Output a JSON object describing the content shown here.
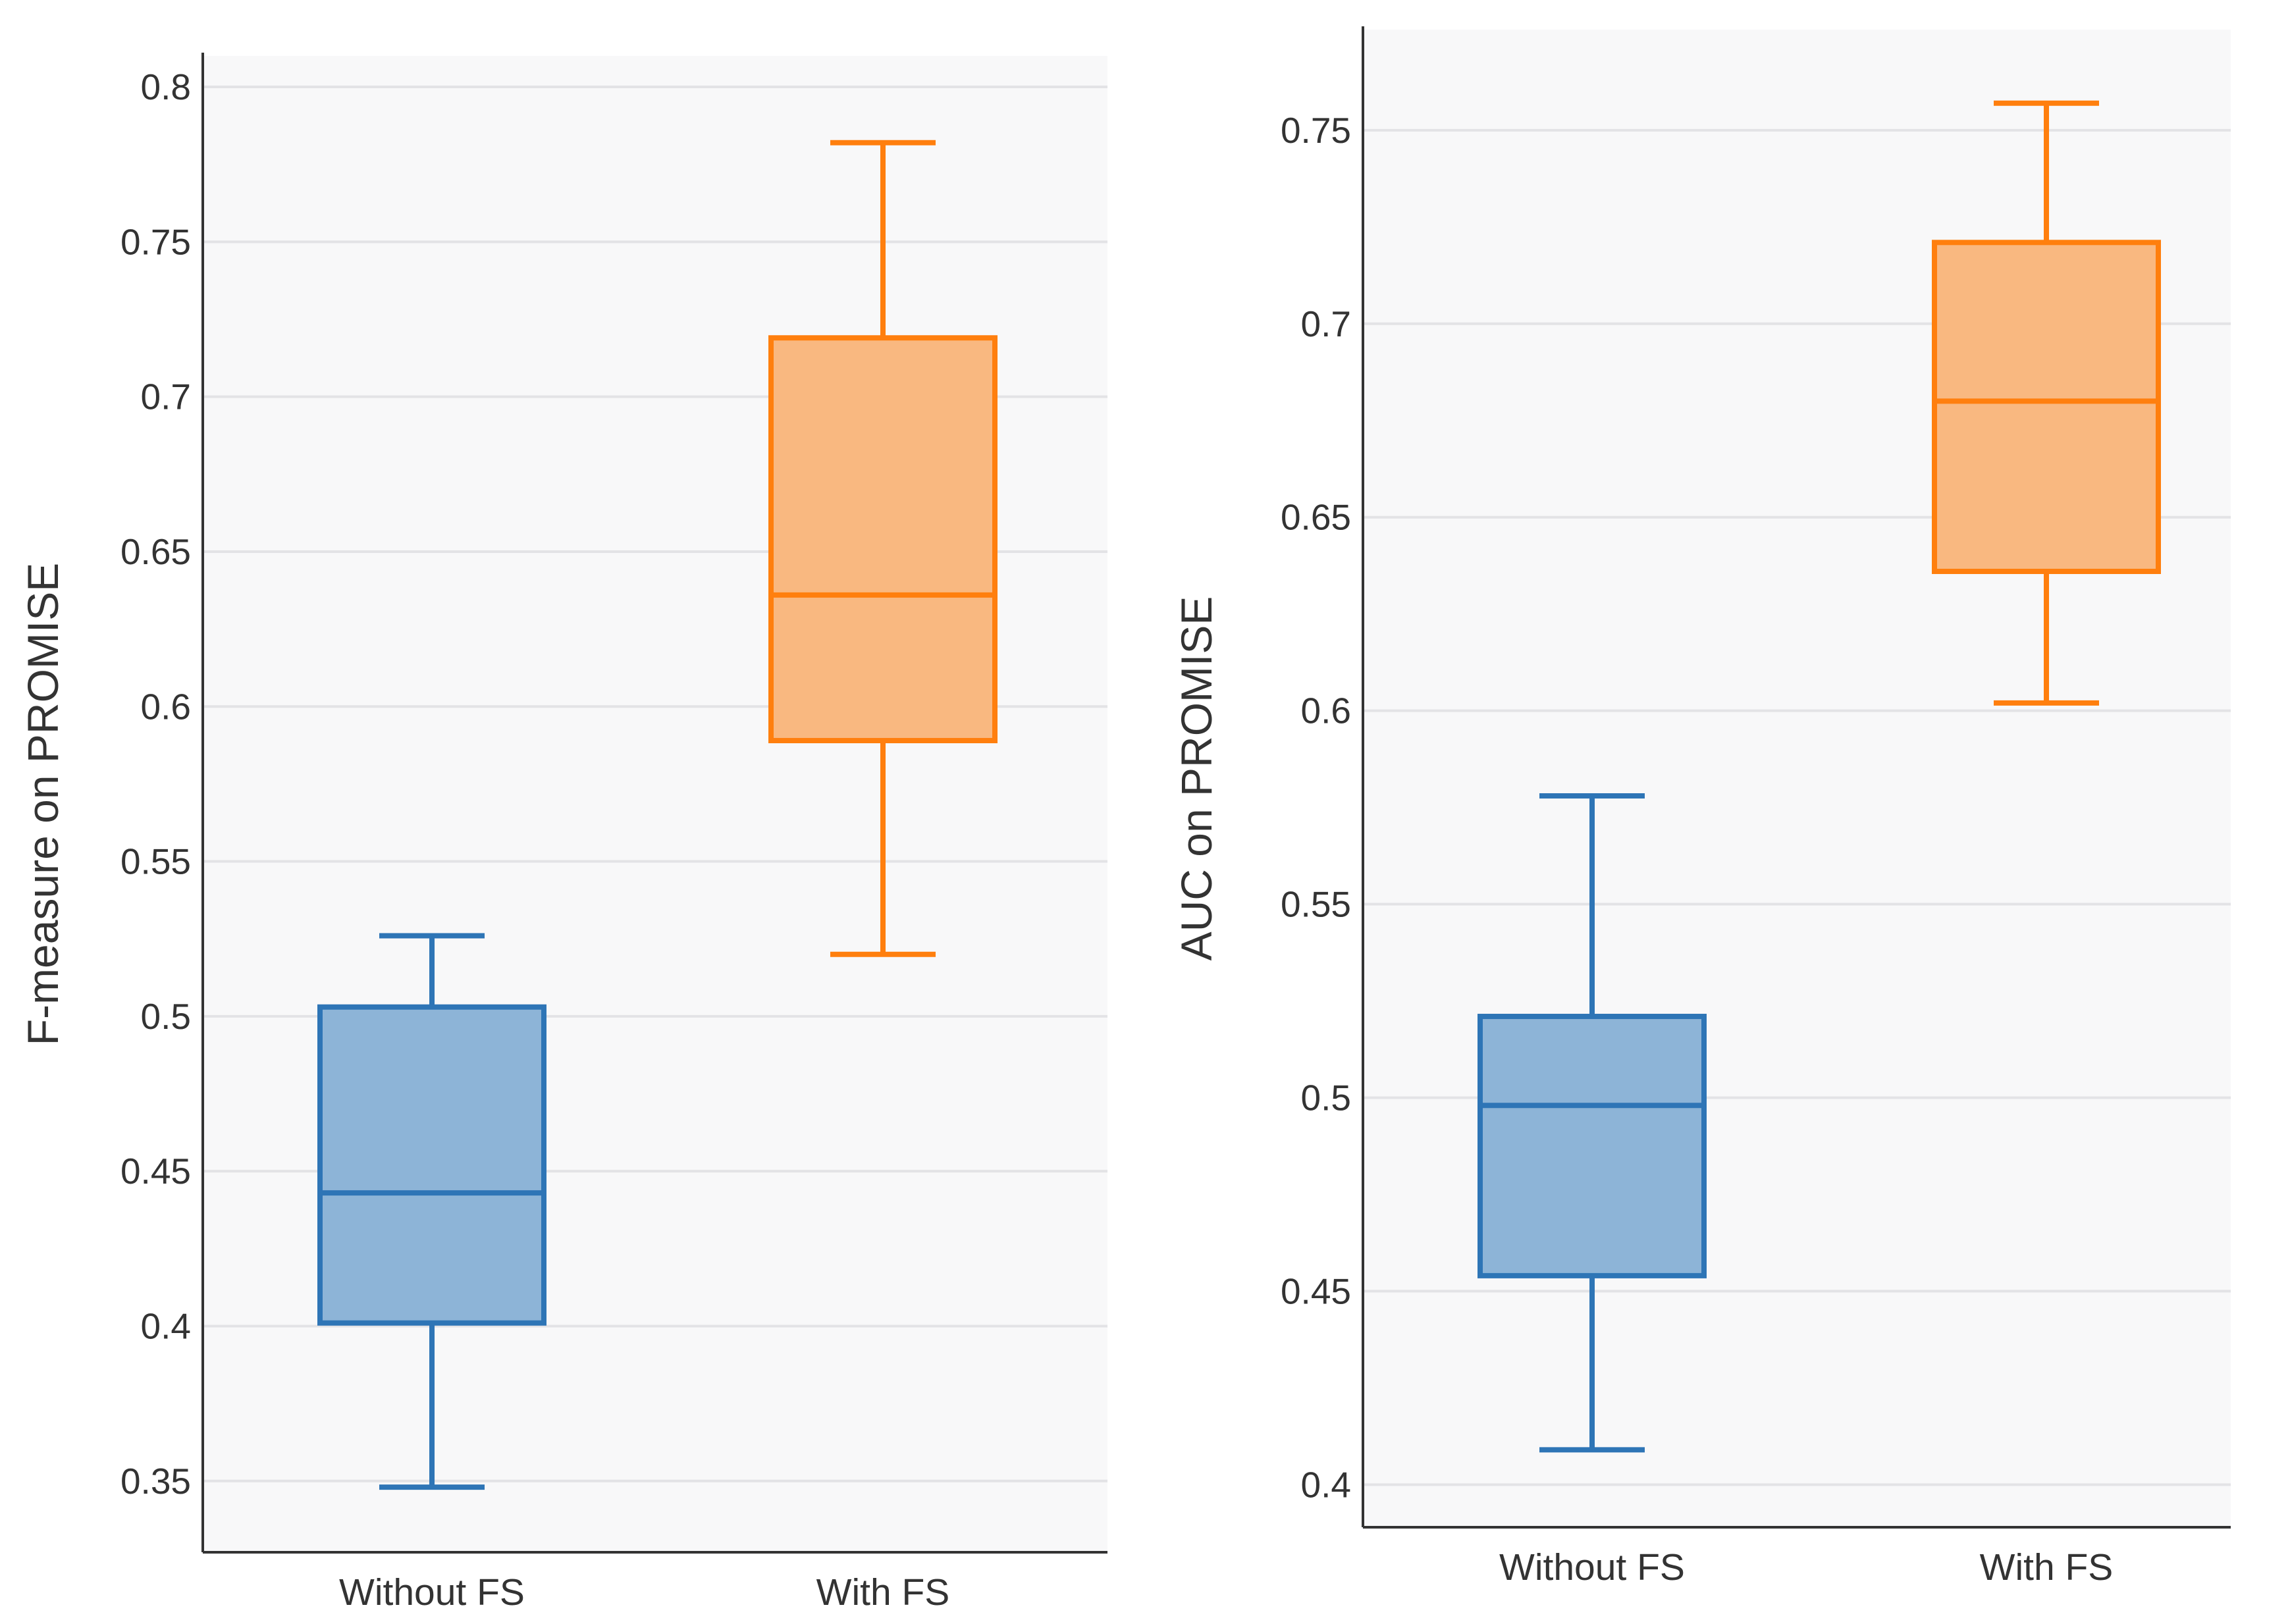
{
  "chart_data": [
    {
      "type": "box",
      "title": "",
      "xlabel": "",
      "ylabel": "F-measure on PROMISE",
      "ylim": [
        0.327,
        0.81
      ],
      "y_ticks": [
        0.35,
        0.4,
        0.45,
        0.5,
        0.55,
        0.6,
        0.65,
        0.7,
        0.75,
        0.8
      ],
      "y_tick_labels": [
        "0.35",
        "0.4",
        "0.45",
        "0.5",
        "0.55",
        "0.6",
        "0.65",
        "0.7",
        "0.75",
        "0.8"
      ],
      "grid": true,
      "categories": [
        "Without FS",
        "With FS"
      ],
      "boxes": [
        {
          "name": "Without FS",
          "min": 0.348,
          "q1": 0.401,
          "median": 0.443,
          "q3": 0.503,
          "max": 0.526,
          "color": "#2e75b6",
          "fill": "#8db4d7"
        },
        {
          "name": "With FS",
          "min": 0.52,
          "q1": 0.589,
          "median": 0.636,
          "q3": 0.719,
          "max": 0.782,
          "color": "#ff7f0e",
          "fill": "#f9b880"
        }
      ]
    },
    {
      "type": "box",
      "title": "",
      "xlabel": "",
      "ylabel": "AUC on PROMISE",
      "ylim": [
        0.389,
        0.776
      ],
      "y_ticks": [
        0.4,
        0.45,
        0.5,
        0.55,
        0.6,
        0.65,
        0.7,
        0.75
      ],
      "y_tick_labels": [
        "0.4",
        "0.45",
        "0.5",
        "0.55",
        "0.6",
        "0.65",
        "0.7",
        "0.75"
      ],
      "grid": true,
      "categories": [
        "Without FS",
        "With FS"
      ],
      "boxes": [
        {
          "name": "Without FS",
          "min": 0.409,
          "q1": 0.454,
          "median": 0.498,
          "q3": 0.521,
          "max": 0.578,
          "color": "#2e75b6",
          "fill": "#8db4d7"
        },
        {
          "name": "With FS",
          "min": 0.602,
          "q1": 0.636,
          "median": 0.68,
          "q3": 0.721,
          "max": 0.757,
          "color": "#ff7f0e",
          "fill": "#f9b880"
        }
      ]
    }
  ]
}
